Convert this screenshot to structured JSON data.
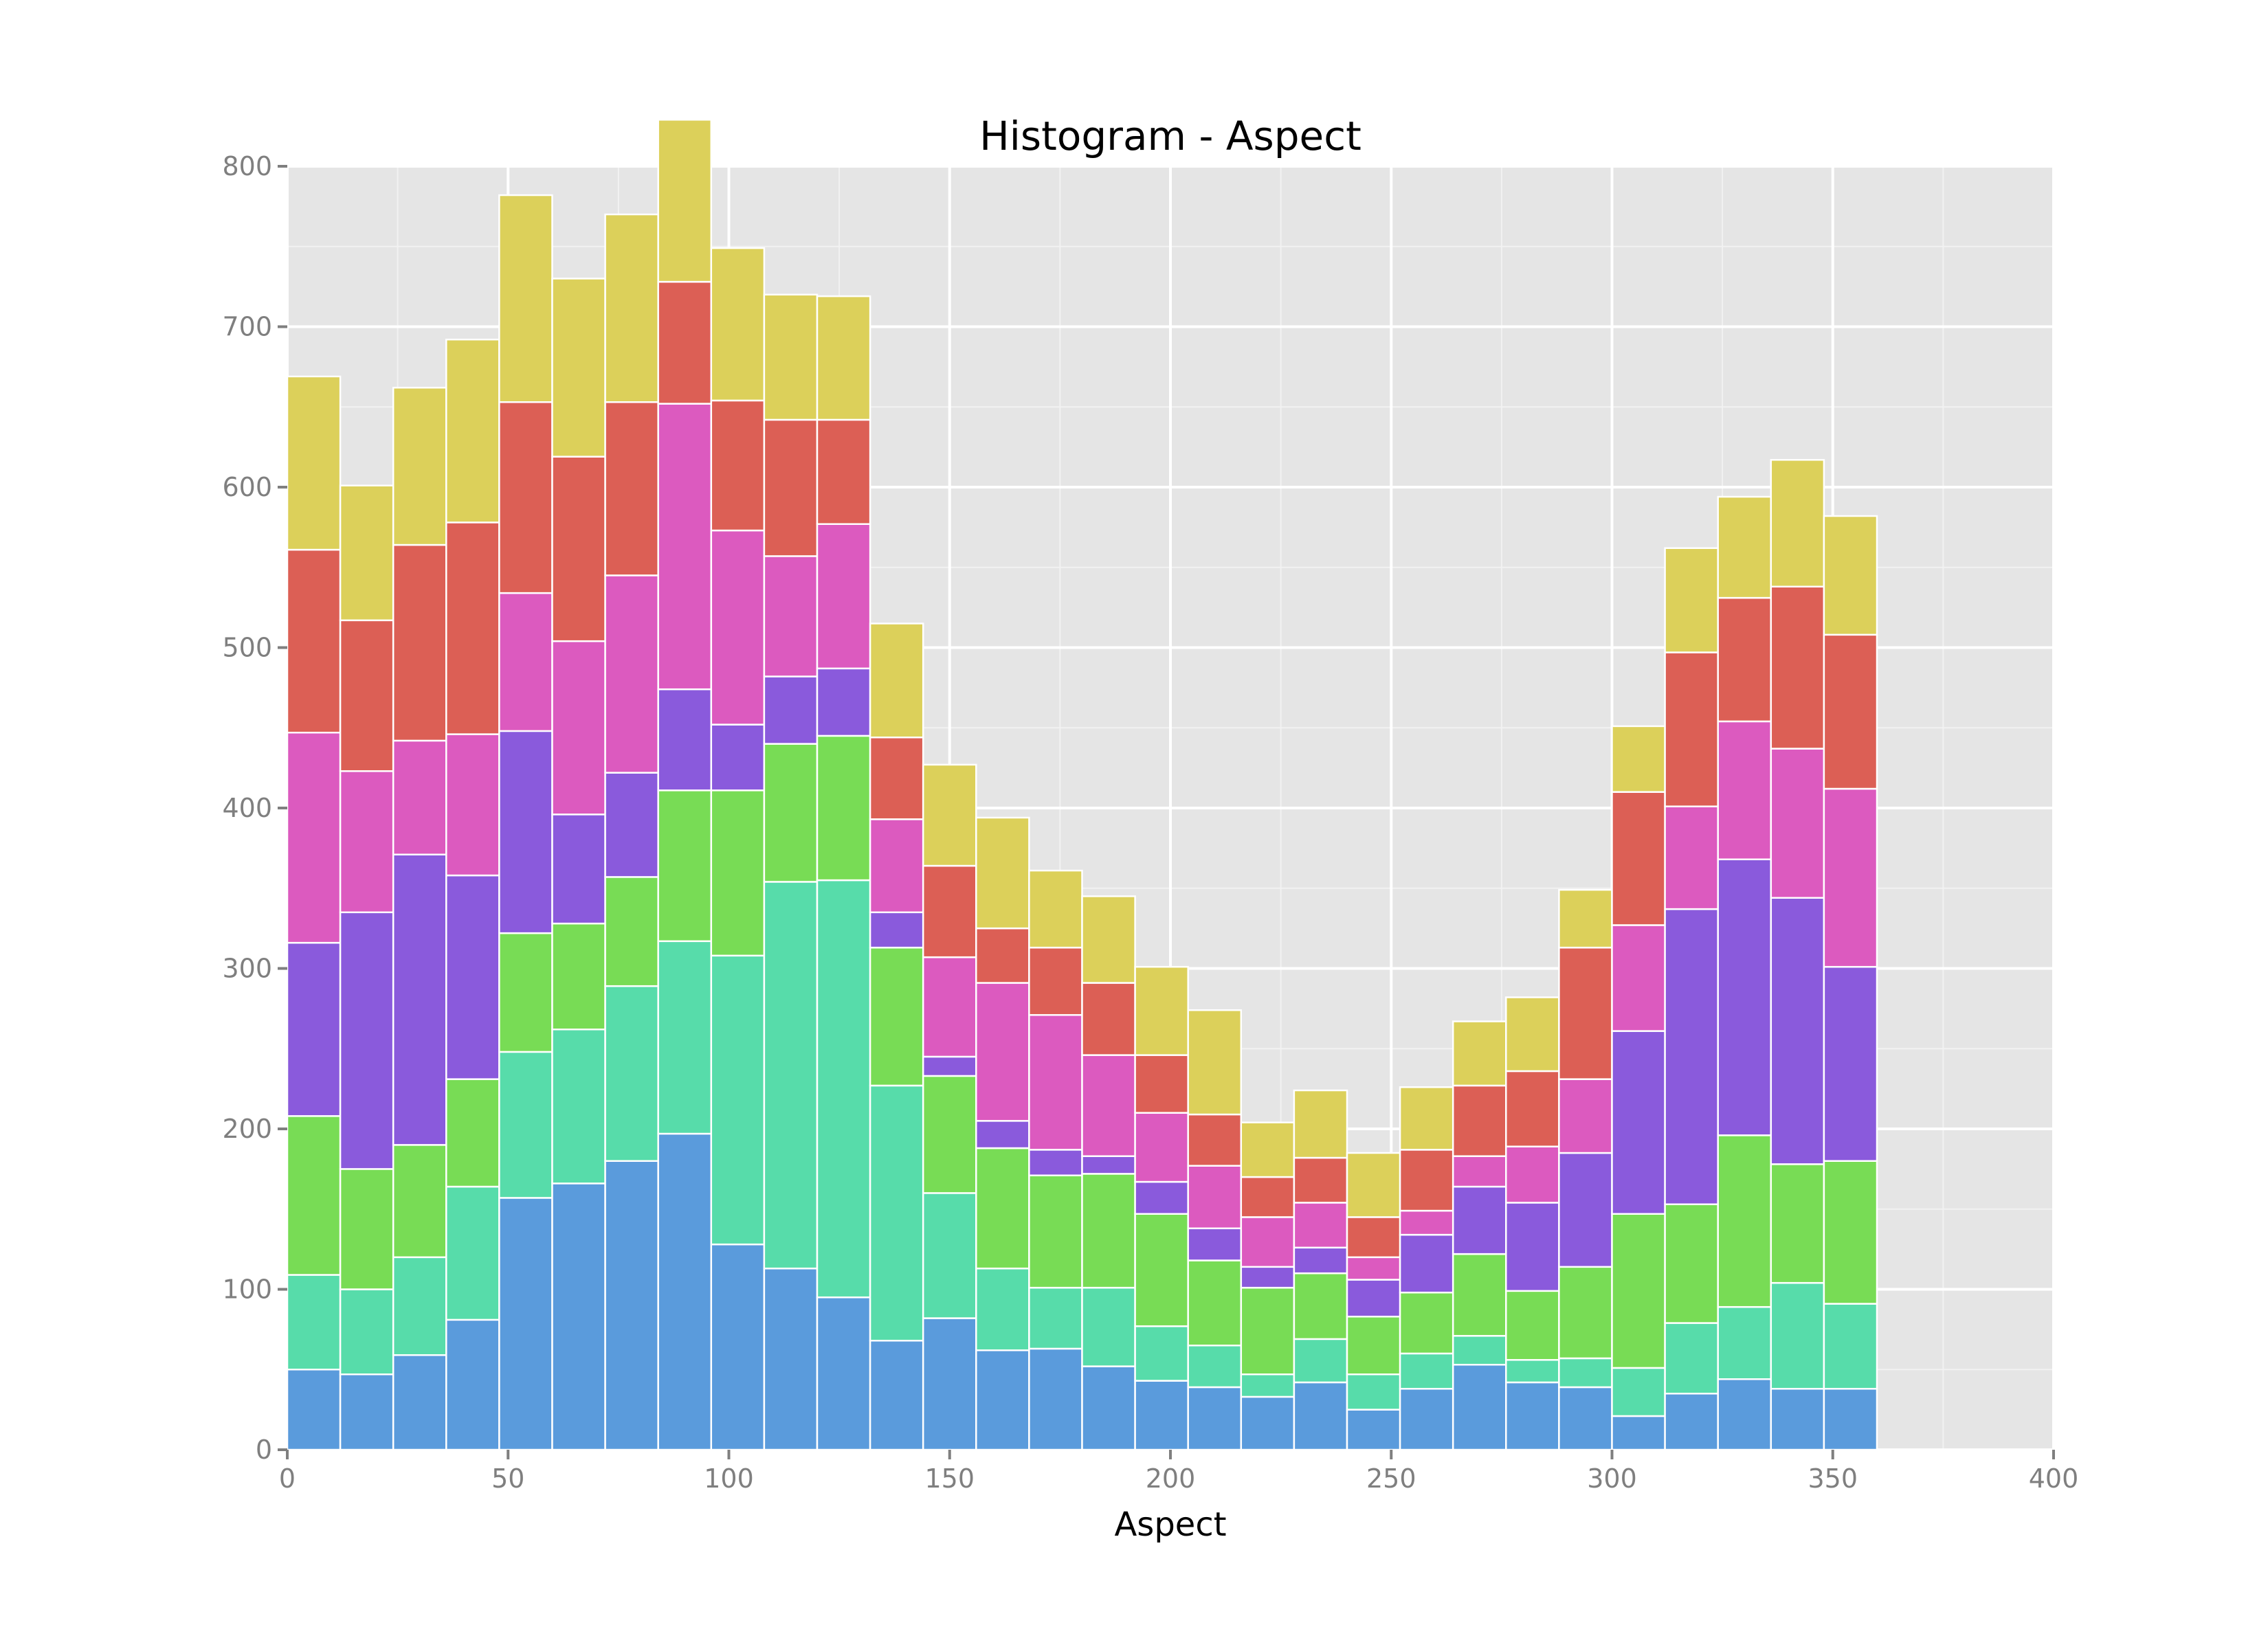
{
  "chart_data": {
    "type": "bar",
    "stacked": true,
    "title": "Histogram - Aspect",
    "xlabel": "Aspect",
    "ylabel": "",
    "xlim": [
      0,
      400
    ],
    "ylim": [
      0,
      800
    ],
    "xticks": [
      "0",
      "50",
      "100",
      "150",
      "200",
      "250",
      "300",
      "350",
      "400"
    ],
    "yticks": [
      "0",
      "100",
      "200",
      "300",
      "400",
      "500",
      "600",
      "700",
      "800"
    ],
    "grid": true,
    "bin_width": 12,
    "bin_starts": [
      0,
      12,
      24,
      36,
      48,
      60,
      72,
      84,
      96,
      108,
      120,
      132,
      144,
      156,
      168,
      180,
      192,
      204,
      216,
      228,
      240,
      252,
      264,
      276,
      288,
      300,
      312,
      324,
      336,
      348
    ],
    "series": [
      {
        "color": "#5a9bdc",
        "values": [
          50,
          47,
          59,
          81,
          157,
          166,
          180,
          197,
          128,
          113,
          95,
          68,
          82,
          62,
          63,
          52,
          43,
          39,
          33,
          42,
          25,
          38,
          53,
          42,
          39,
          21,
          35,
          44,
          38,
          38
        ]
      },
      {
        "color": "#57dcaa",
        "values": [
          59,
          53,
          61,
          83,
          91,
          96,
          109,
          120,
          180,
          241,
          260,
          159,
          78,
          51,
          38,
          49,
          34,
          26,
          14,
          27,
          22,
          22,
          18,
          14,
          18,
          30,
          44,
          45,
          66,
          53
        ]
      },
      {
        "color": "#78dc55",
        "values": [
          99,
          75,
          70,
          67,
          74,
          66,
          68,
          94,
          103,
          86,
          90,
          86,
          73,
          75,
          70,
          71,
          70,
          53,
          54,
          41,
          36,
          38,
          51,
          43,
          57,
          96,
          74,
          107,
          74,
          89
        ]
      },
      {
        "color": "#8a5adc",
        "values": [
          108,
          160,
          181,
          127,
          126,
          68,
          65,
          63,
          41,
          42,
          42,
          22,
          12,
          17,
          16,
          11,
          20,
          20,
          13,
          16,
          23,
          36,
          42,
          55,
          71,
          114,
          184,
          172,
          166,
          121
        ]
      },
      {
        "color": "#dc5abf",
        "values": [
          131,
          88,
          71,
          88,
          86,
          108,
          123,
          178,
          121,
          75,
          90,
          58,
          62,
          86,
          84,
          63,
          43,
          39,
          31,
          28,
          14,
          15,
          19,
          35,
          46,
          66,
          64,
          86,
          93,
          111
        ]
      },
      {
        "color": "#dc5f55",
        "values": [
          114,
          94,
          122,
          132,
          119,
          115,
          108,
          76,
          81,
          85,
          65,
          51,
          57,
          34,
          42,
          45,
          36,
          32,
          25,
          28,
          25,
          38,
          44,
          47,
          82,
          83,
          96,
          77,
          101,
          96
        ]
      },
      {
        "color": "#dcd05a",
        "values": [
          108,
          84,
          98,
          114,
          129,
          111,
          117,
          101,
          95,
          78,
          77,
          71,
          63,
          69,
          48,
          54,
          55,
          65,
          34,
          42,
          40,
          39,
          40,
          46,
          36,
          41,
          65,
          63,
          79,
          74
        ]
      }
    ]
  }
}
